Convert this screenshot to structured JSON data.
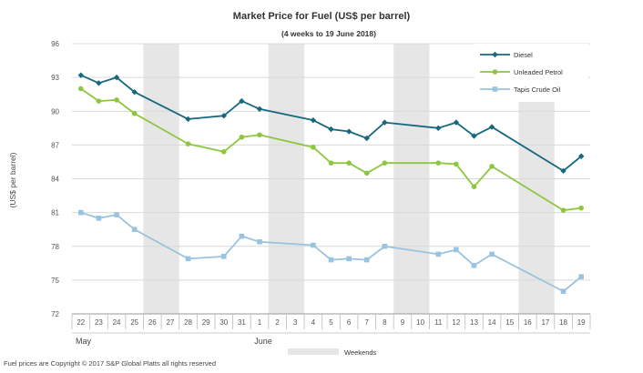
{
  "chart_data": {
    "type": "line",
    "title": "Market Price for Fuel (US$  per barrel)",
    "subtitle": "(4 weeks to 19 June 2018)",
    "ylabel": "(US$ per barrel)",
    "ylim": [
      72,
      96
    ],
    "yticks": [
      72,
      75,
      78,
      81,
      84,
      87,
      90,
      93,
      96
    ],
    "grid": true,
    "legend_position": "top-right",
    "categories": [
      "22",
      "23",
      "24",
      "25",
      "26",
      "27",
      "28",
      "29",
      "30",
      "31",
      "1",
      "2",
      "3",
      "4",
      "5",
      "6",
      "7",
      "8",
      "9",
      "10",
      "11",
      "12",
      "13",
      "14",
      "15",
      "16",
      "17",
      "18",
      "19"
    ],
    "months": [
      {
        "label": "May",
        "start": 0
      },
      {
        "label": "June",
        "start": 10
      }
    ],
    "weekend_shading": {
      "label": "Weekends",
      "color": "#e6e6e6",
      "ranges": [
        [
          4,
          5
        ],
        [
          11,
          12
        ],
        [
          18,
          19
        ],
        [
          25,
          26
        ]
      ]
    },
    "series": [
      {
        "name": "Diesel",
        "color": "#17687f",
        "marker": "diamond",
        "values": [
          93.2,
          92.5,
          93.0,
          91.7,
          null,
          null,
          89.3,
          null,
          89.6,
          90.9,
          90.2,
          null,
          null,
          89.2,
          88.4,
          88.2,
          87.6,
          89.0,
          null,
          null,
          88.5,
          89.0,
          87.8,
          88.6,
          null,
          null,
          null,
          84.7,
          86.0
        ]
      },
      {
        "name": "Unleaded Petrol",
        "color": "#8dc63f",
        "marker": "circle",
        "values": [
          92.0,
          90.9,
          91.0,
          89.8,
          null,
          null,
          87.1,
          null,
          86.4,
          87.7,
          87.9,
          null,
          null,
          86.8,
          85.4,
          85.4,
          84.5,
          85.4,
          null,
          null,
          85.4,
          85.3,
          83.3,
          85.1,
          null,
          null,
          null,
          81.2,
          81.4
        ]
      },
      {
        "name": "Tapis Crude Oil",
        "color": "#9ac3df",
        "marker": "square",
        "values": [
          81.0,
          80.5,
          80.8,
          79.5,
          null,
          null,
          76.9,
          null,
          77.1,
          78.9,
          78.4,
          null,
          null,
          78.1,
          76.8,
          76.9,
          76.8,
          78.0,
          null,
          null,
          77.3,
          77.7,
          76.3,
          77.3,
          null,
          null,
          null,
          74.0,
          75.3
        ]
      }
    ],
    "footer": "Fuel prices are Copyright © 2017 S&P Global Platts all rights reserved"
  }
}
